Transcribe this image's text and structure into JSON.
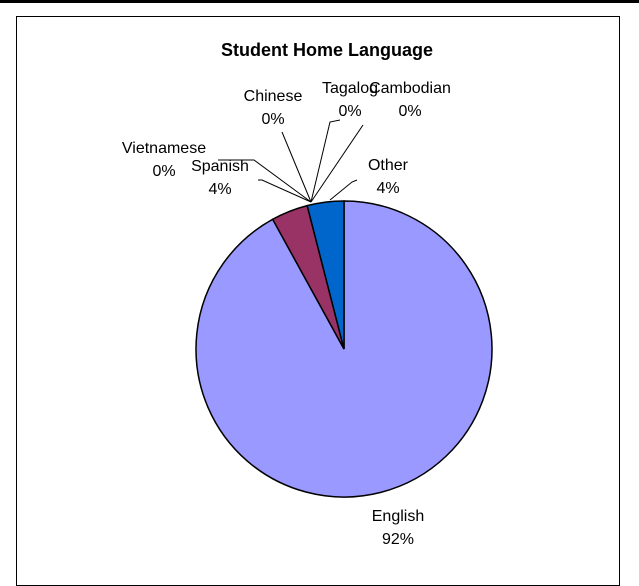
{
  "chart_data": {
    "type": "pie",
    "title": "Student Home Language",
    "start_angle_deg": 0,
    "direction": "clockwise",
    "slices": [
      {
        "label": "English",
        "value": 92,
        "display": "92%",
        "color": "#9999FF"
      },
      {
        "label": "Spanish",
        "value": 4,
        "display": "4%",
        "color": "#993366"
      },
      {
        "label": "Vietnamese",
        "value": 0,
        "display": "0%",
        "color": "#FFFFCC"
      },
      {
        "label": "Chinese",
        "value": 0,
        "display": "0%",
        "color": "#CCFFFF"
      },
      {
        "label": "Tagalog",
        "value": 0,
        "display": "0%",
        "color": "#660066"
      },
      {
        "label": "Cambodian",
        "value": 0,
        "display": "0%",
        "color": "#FF8080"
      },
      {
        "label": "Other",
        "value": 4,
        "display": "4%",
        "color": "#0066CC"
      }
    ]
  }
}
